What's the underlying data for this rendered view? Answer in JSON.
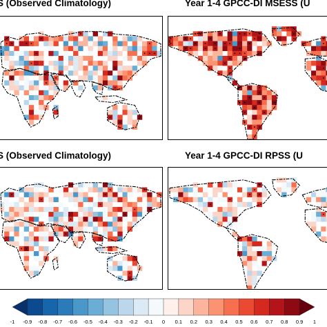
{
  "panels": [
    {
      "id": "tl",
      "title": "S (Observed Climatology)"
    },
    {
      "id": "tr",
      "title": "Year 1-4 GPCC-DI MSESS (U"
    },
    {
      "id": "bl",
      "title": "S (Observed Climatology)"
    },
    {
      "id": "br",
      "title": "Year 1-4 GPCC-DI RPSS (U"
    }
  ],
  "colorbar": {
    "ticks": [
      "-1",
      "-0.9",
      "-0.8",
      "-0.7",
      "-0.6",
      "-0.5",
      "-0.4",
      "-0.3",
      "-0.2",
      "-0.1",
      "0",
      "0.1",
      "0.2",
      "0.3",
      "0.4",
      "0.5",
      "0.6",
      "0.7",
      "0.8",
      "0.9",
      "1"
    ],
    "colors": [
      "#08306b",
      "#0b4a8f",
      "#1765ab",
      "#2b7bba",
      "#4a98c9",
      "#6aaed6",
      "#94c4df",
      "#bcd7eb",
      "#dceaf5",
      "#f4f9fc",
      "#fff0ec",
      "#fcd5c9",
      "#fcb49d",
      "#fb9272",
      "#f6704f",
      "#ea4a32",
      "#d3291f",
      "#b31419",
      "#8e0a12",
      "#67000d"
    ]
  },
  "map_colors": {
    "coast": "#000000",
    "stipple": "#000000"
  }
}
